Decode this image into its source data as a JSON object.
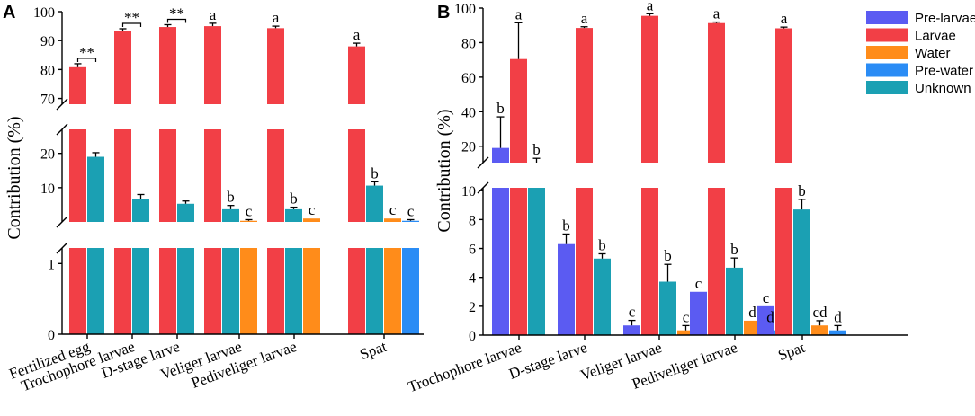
{
  "figure": {
    "panel_a_letter": "A",
    "panel_b_letter": "B"
  },
  "colors": {
    "Pre-larvae": "#5b5bf2",
    "Larvae": "#f23f46",
    "Water": "#ff8c1a",
    "Pre-water": "#2a8cf5",
    "Unknown": "#1ba0b3"
  },
  "chart_data": [
    {
      "panel": "A",
      "type": "bar",
      "title": "",
      "ylabel": "Contribution (%)",
      "xlabel": "",
      "y_axis": "broken",
      "segments": [
        {
          "range": [
            68,
            100
          ],
          "ticks": [
            70,
            80,
            90,
            100
          ]
        },
        {
          "range": [
            0,
            27
          ],
          "ticks": [
            10,
            20
          ]
        },
        {
          "range": [
            0,
            1.22
          ],
          "ticks": [
            0,
            1
          ]
        }
      ],
      "categories": [
        "Fertilized egg",
        "Trochophore larvae",
        "D-stage larve",
        "Veliger larvae",
        "Pediveliger larvae",
        "Spat"
      ],
      "series": [
        {
          "name": "Larvae",
          "values": [
            80.8,
            93.2,
            94.7,
            95.0,
            94.3,
            88.0
          ],
          "errors": [
            1.2,
            0.9,
            0.8,
            1.0,
            0.7,
            1.1
          ]
        },
        {
          "name": "Unknown",
          "values": [
            19.0,
            6.8,
            5.3,
            3.7,
            3.7,
            10.6
          ],
          "errors": [
            1.2,
            1.2,
            0.8,
            1.1,
            0.6,
            1.1
          ]
        },
        {
          "name": "Water",
          "values": [
            null,
            null,
            null,
            0.33,
            1.0,
            1.0
          ],
          "errors": [
            null,
            null,
            null,
            0.33,
            0,
            0
          ]
        },
        {
          "name": "Pre-water",
          "values": [
            null,
            null,
            null,
            null,
            null,
            0.33
          ],
          "errors": [
            null,
            null,
            null,
            null,
            null,
            0.33
          ]
        }
      ],
      "annotations": [
        {
          "category": "Fertilized egg",
          "text": "**"
        },
        {
          "category": "Trochophore larvae",
          "text": "**"
        },
        {
          "category": "D-stage larve",
          "text": "**"
        },
        {
          "category": "Veliger larvae",
          "series": "Larvae",
          "text": "a"
        },
        {
          "category": "Pediveliger larvae",
          "series": "Larvae",
          "text": "a"
        },
        {
          "category": "Spat",
          "series": "Larvae",
          "text": "a"
        },
        {
          "category": "Veliger larvae",
          "series": "Unknown",
          "text": "b"
        },
        {
          "category": "Pediveliger larvae",
          "series": "Unknown",
          "text": "b"
        },
        {
          "category": "Spat",
          "series": "Unknown",
          "text": "b"
        },
        {
          "category": "Veliger larvae",
          "series": "Water",
          "text": "c"
        },
        {
          "category": "Pediveliger larvae",
          "series": "Water",
          "text": "c"
        },
        {
          "category": "Spat",
          "series": "Water",
          "text": "c"
        },
        {
          "category": "Spat",
          "series": "Pre-water",
          "text": "c"
        }
      ]
    },
    {
      "panel": "B",
      "type": "bar",
      "title": "",
      "ylabel": "Contribution (%)",
      "xlabel": "",
      "y_axis": "broken",
      "segments": [
        {
          "range": [
            10.5,
            100
          ],
          "ticks": [
            20,
            40,
            60,
            80,
            100
          ]
        },
        {
          "range": [
            0,
            10.2
          ],
          "ticks": [
            0,
            2,
            4,
            6,
            8,
            10
          ]
        }
      ],
      "categories": [
        "Trochophore larvae",
        "D-stage larve",
        "Veliger larvae",
        "Pediveliger larvae",
        "Spat"
      ],
      "legend": [
        "Pre-larvae",
        "Larvae",
        "Water",
        "Pre-water",
        "Unknown"
      ],
      "legend_position": "top-right",
      "series": [
        {
          "name": "Pre-larvae",
          "values": [
            19.0,
            6.3,
            0.67,
            3.0,
            2.0
          ],
          "errors": [
            18.0,
            0.7,
            0.35,
            0,
            0
          ]
        },
        {
          "name": "Larvae",
          "values": [
            70.5,
            88.5,
            95.5,
            91.3,
            88.3
          ],
          "errors": [
            21.0,
            0.7,
            1.2,
            0.6,
            0.7
          ]
        },
        {
          "name": "Unknown",
          "values": [
            10.5,
            5.3,
            3.7,
            4.67,
            8.7
          ],
          "errors": [
            2.5,
            0.33,
            1.2,
            0.67,
            0.7
          ]
        },
        {
          "name": "Water",
          "values": [
            null,
            null,
            0.33,
            1.0,
            0.67
          ],
          "errors": [
            null,
            null,
            0.33,
            0,
            0.33
          ]
        },
        {
          "name": "Pre-water",
          "values": [
            null,
            null,
            null,
            0.33,
            0.33
          ],
          "errors": [
            null,
            null,
            null,
            0.33,
            0.33
          ]
        }
      ],
      "annotations": [
        {
          "category": "Trochophore larvae",
          "series": "Larvae",
          "text": "a"
        },
        {
          "category": "D-stage larve",
          "series": "Larvae",
          "text": "a"
        },
        {
          "category": "Veliger larvae",
          "series": "Larvae",
          "text": "a"
        },
        {
          "category": "Pediveliger larvae",
          "series": "Larvae",
          "text": "a"
        },
        {
          "category": "Spat",
          "series": "Larvae",
          "text": "a"
        },
        {
          "category": "Trochophore larvae",
          "series": "Pre-larvae",
          "text": "b"
        },
        {
          "category": "Trochophore larvae",
          "series": "Unknown",
          "text": "b"
        },
        {
          "category": "D-stage larve",
          "series": "Pre-larvae",
          "text": "b"
        },
        {
          "category": "D-stage larve",
          "series": "Unknown",
          "text": "b"
        },
        {
          "category": "Veliger larvae",
          "series": "Pre-larvae",
          "text": "c"
        },
        {
          "category": "Veliger larvae",
          "series": "Unknown",
          "text": "b"
        },
        {
          "category": "Veliger larvae",
          "series": "Water",
          "text": "c"
        },
        {
          "category": "Pediveliger larvae",
          "series": "Pre-larvae",
          "text": "c"
        },
        {
          "category": "Pediveliger larvae",
          "series": "Unknown",
          "text": "b"
        },
        {
          "category": "Pediveliger larvae",
          "series": "Water",
          "text": "d"
        },
        {
          "category": "Pediveliger larvae",
          "series": "Pre-water",
          "text": "d"
        },
        {
          "category": "Spat",
          "series": "Pre-larvae",
          "text": "c"
        },
        {
          "category": "Spat",
          "series": "Unknown",
          "text": "b"
        },
        {
          "category": "Spat",
          "series": "Water",
          "text": "cd"
        },
        {
          "category": "Spat",
          "series": "Pre-water",
          "text": "d"
        }
      ]
    }
  ]
}
